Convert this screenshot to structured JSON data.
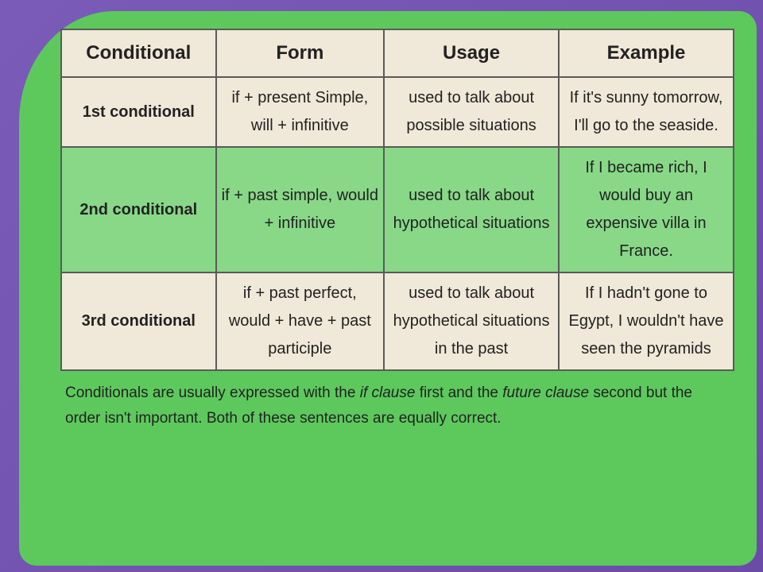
{
  "table": {
    "columns": [
      "Conditional",
      "Form",
      "Usage",
      "Example"
    ],
    "col_widths": [
      "23%",
      "25%",
      "26%",
      "26%"
    ],
    "rows": [
      {
        "bg": "#f0e8d8",
        "cells": [
          "1st conditional",
          "if + present Simple, will + infinitive",
          "used to talk about possible situations",
          "If it's sunny tomorrow, I'll go to the seaside."
        ]
      },
      {
        "bg": "#88d888",
        "cells": [
          "2nd conditional",
          "if + past simple, would + infinitive",
          "used to talk about hypothetical situations",
          "If I became rich, I would buy an expensive villa in France."
        ]
      },
      {
        "bg": "#f0e8d8",
        "cells": [
          "3rd conditional",
          "if + past perfect, would + have + past participle",
          "used to talk about hypothetical situations in the past",
          "If I hadn't gone to Egypt, I wouldn't have seen the pyramids"
        ]
      }
    ]
  },
  "footnote_parts": {
    "p1": "Conditionals are usually expressed with the ",
    "em1": "if clause",
    "p2": " first and the ",
    "em2": "future clause",
    "p3": " second but the order isn't important. Both of these sentences are equally correct."
  },
  "colors": {
    "slide_bg": "#5dc95d",
    "outer_bg_start": "#7a5cb8",
    "outer_bg_end": "#6b4ba8",
    "cell_cream": "#f0e8d8",
    "cell_green": "#88d888",
    "border": "#5a5a5a",
    "text": "#222222"
  },
  "fonts": {
    "header_size": 24,
    "body_size": 20,
    "footnote_size": 19
  }
}
